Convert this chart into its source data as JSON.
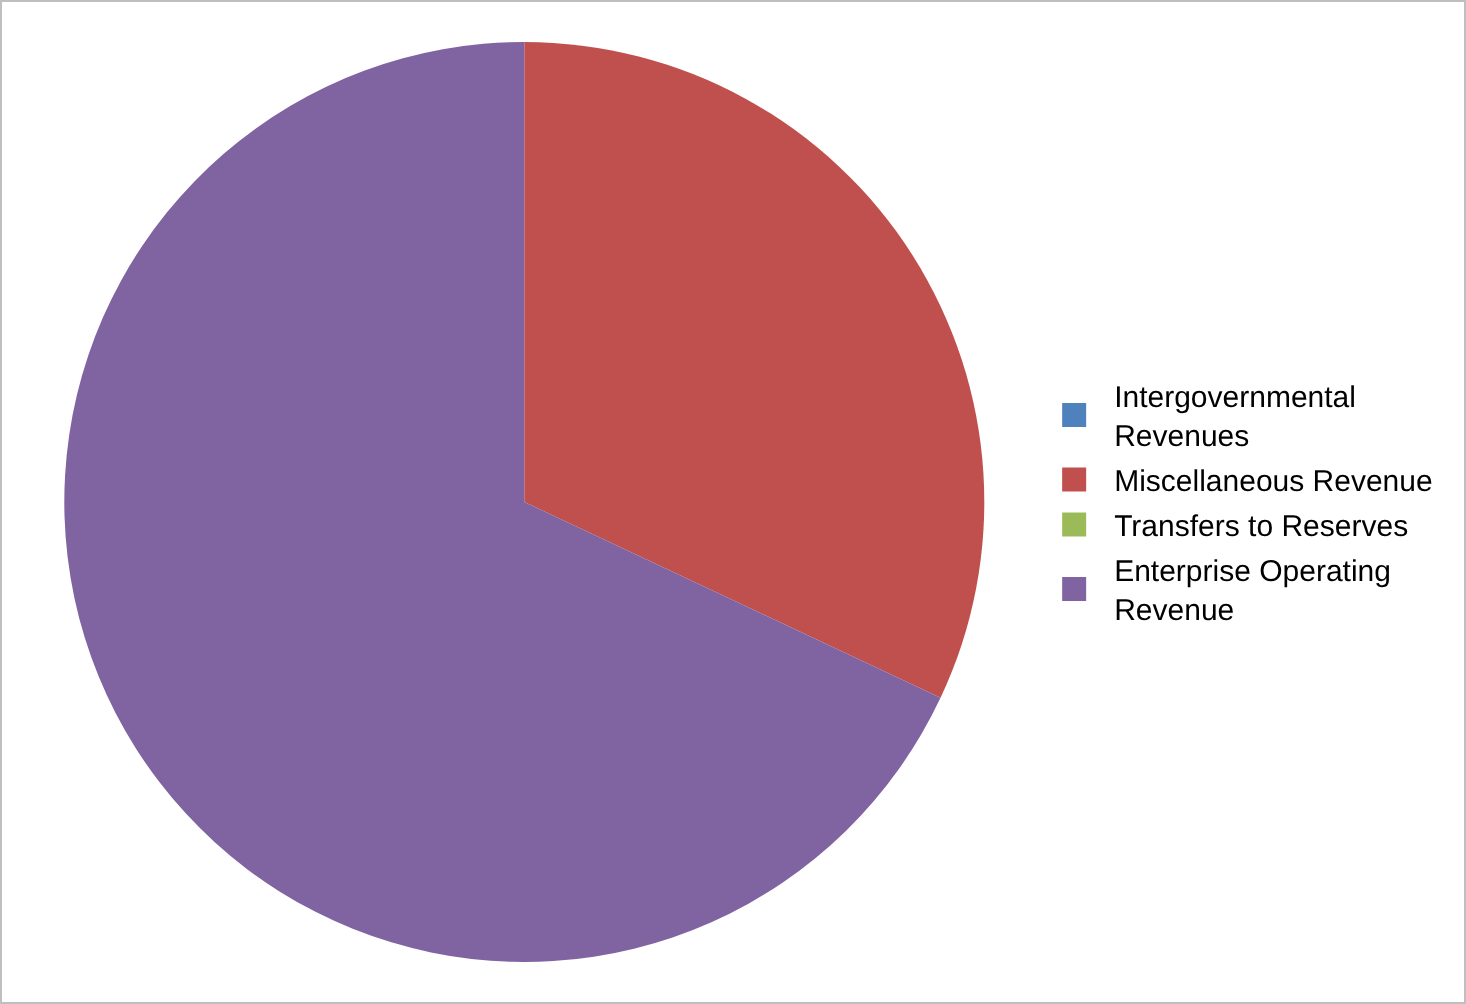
{
  "chart_data": {
    "type": "pie",
    "categories": [
      "Intergovernmental Revenues",
      "Miscellaneous Revenue",
      "Transfers to Reserves",
      "Enterprise Operating Revenue"
    ],
    "values": [
      0,
      32,
      0,
      68
    ],
    "colors": [
      "#4f81bd",
      "#c0504d",
      "#9bbb59",
      "#8064a2"
    ],
    "legend": "right"
  }
}
